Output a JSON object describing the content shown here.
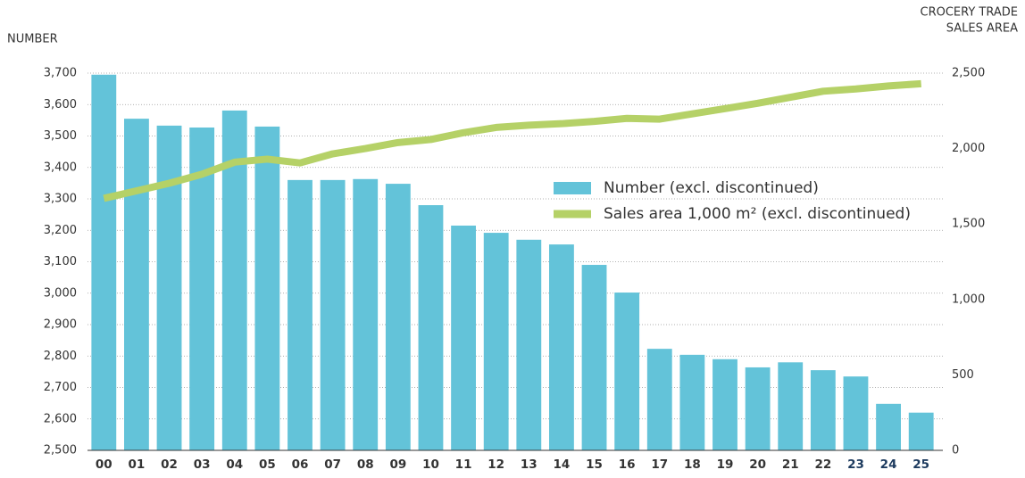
{
  "chart_data": {
    "type": "bar_line",
    "y_label": "NUMBER",
    "y2_label": [
      "CROCERY TRADE",
      "SALES AREA"
    ],
    "categories": [
      "00",
      "01",
      "02",
      "03",
      "04",
      "05",
      "06",
      "07",
      "08",
      "09",
      "10",
      "11",
      "12",
      "13",
      "14",
      "15",
      "16",
      "17",
      "18",
      "19",
      "20",
      "21",
      "22",
      "23",
      "24",
      "25"
    ],
    "category_label_colors": [
      "#333333",
      "#333333",
      "#333333",
      "#333333",
      "#333333",
      "#333333",
      "#333333",
      "#333333",
      "#333333",
      "#333333",
      "#333333",
      "#333333",
      "#333333",
      "#333333",
      "#333333",
      "#333333",
      "#333333",
      "#333333",
      "#333333",
      "#333333",
      "#333333",
      "#333333",
      "#333333",
      "#1c3a5e",
      "#1c3a5e",
      "#1c3a5e"
    ],
    "series": [
      {
        "name": "Number (excl. discontinued)",
        "color": "#63c3d9",
        "type": "bar",
        "axis": "y",
        "values": [
          3695,
          3555,
          3533,
          3527,
          3581,
          3530,
          3360,
          3360,
          3363,
          3348,
          3280,
          3215,
          3192,
          3170,
          3155,
          3090,
          3002,
          2823,
          2804,
          2790,
          2764,
          2780,
          2755,
          2735,
          2648,
          2620
        ]
      },
      {
        "name": "Sales area 1,000 m² (excl. discontinued)",
        "color": "#b5d167",
        "type": "line",
        "axis": "y2",
        "values": [
          1670,
          1720,
          1770,
          1830,
          1910,
          1930,
          1905,
          1965,
          2000,
          2040,
          2060,
          2105,
          2140,
          2155,
          2165,
          2180,
          2200,
          2195,
          2230,
          2265,
          2300,
          2340,
          2380,
          2395,
          2415,
          2430
        ]
      }
    ],
    "ylim": [
      2500,
      3700
    ],
    "yticks": [
      {
        "value": 2500,
        "label": "2,500"
      },
      {
        "value": 2600,
        "label": "2,600"
      },
      {
        "value": 2700,
        "label": "2,700"
      },
      {
        "value": 2800,
        "label": "2,800"
      },
      {
        "value": 2900,
        "label": "2,900"
      },
      {
        "value": 3000,
        "label": "3,000"
      },
      {
        "value": 3100,
        "label": "3,100"
      },
      {
        "value": 3200,
        "label": "3,200"
      },
      {
        "value": 3300,
        "label": "3,300"
      },
      {
        "value": 3400,
        "label": "3,400"
      },
      {
        "value": 3500,
        "label": "3,500"
      },
      {
        "value": 3600,
        "label": "3,600"
      },
      {
        "value": 3700,
        "label": "3,700"
      }
    ],
    "y2lim": [
      0,
      2500
    ],
    "y2ticks": [
      0,
      500,
      {
        "value": 1000,
        "label": "1,000"
      },
      {
        "value": 1500,
        "label": "1,500"
      },
      {
        "value": 2000,
        "label": "2,000"
      },
      {
        "value": 2500,
        "label": "2,500"
      }
    ],
    "grid": true
  }
}
